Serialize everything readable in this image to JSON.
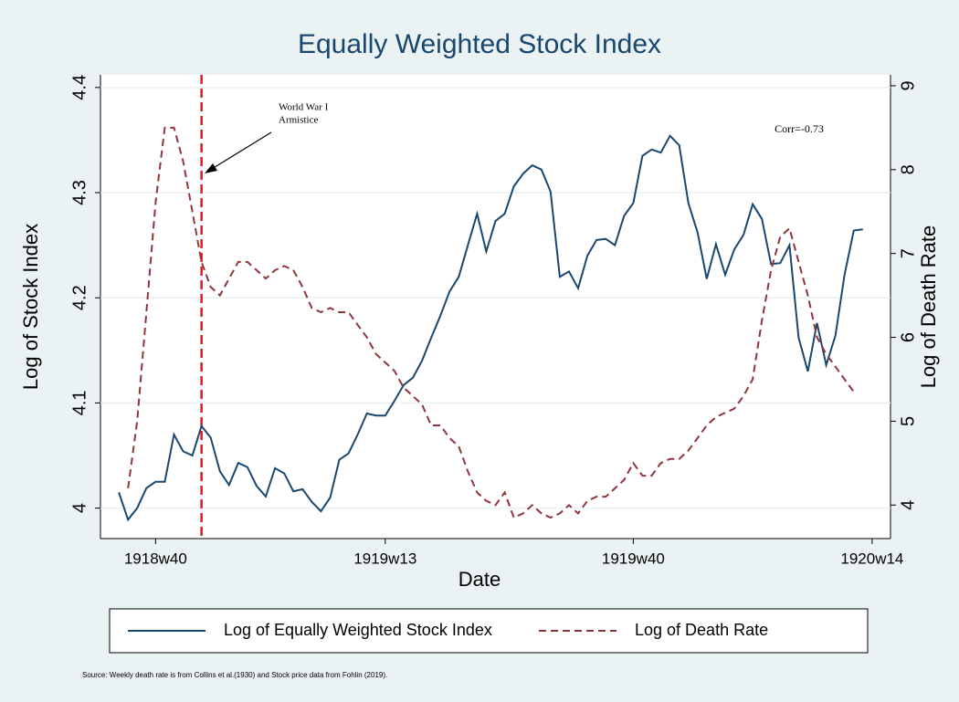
{
  "chart_data": {
    "type": "line",
    "title": "Equally Weighted Stock Index",
    "xlabel": "Date",
    "ylabel": "Log of Stock Index",
    "y2label": "Log of Death Rate",
    "source": "Source: Weekly death rate is from Collins et al.(1930) and Stock price data from Fohlin (2019).",
    "corr_label": "Corr=-0.73",
    "annotation": {
      "lines": [
        "World War I",
        "Armistice"
      ],
      "x": "1918w45",
      "color": "#e8191f"
    },
    "x": [
      "1918w36",
      "1918w37",
      "1918w38",
      "1918w39",
      "1918w40",
      "1918w41",
      "1918w42",
      "1918w43",
      "1918w44",
      "1918w45",
      "1918w46",
      "1918w47",
      "1918w48",
      "1918w49",
      "1918w50",
      "1918w51",
      "1918w52",
      "1919w1",
      "1919w2",
      "1919w3",
      "1919w4",
      "1919w5",
      "1919w6",
      "1919w7",
      "1919w8",
      "1919w9",
      "1919w10",
      "1919w11",
      "1919w12",
      "1919w13",
      "1919w14",
      "1919w15",
      "1919w16",
      "1919w17",
      "1919w18",
      "1919w19",
      "1919w20",
      "1919w21",
      "1919w22",
      "1919w23",
      "1919w24",
      "1919w25",
      "1919w26",
      "1919w27",
      "1919w28",
      "1919w29",
      "1919w30",
      "1919w31",
      "1919w32",
      "1919w33",
      "1919w34",
      "1919w35",
      "1919w36",
      "1919w37",
      "1919w38",
      "1919w39",
      "1919w40",
      "1919w41",
      "1919w42",
      "1919w43",
      "1919w44",
      "1919w45",
      "1919w46",
      "1919w47",
      "1919w48",
      "1919w49",
      "1919w50",
      "1919w51",
      "1919w52",
      "1920w1",
      "1920w2",
      "1920w3",
      "1920w4",
      "1920w5",
      "1920w6",
      "1920w7",
      "1920w8",
      "1920w9",
      "1920w10",
      "1920w11",
      "1920w12",
      "1920w13"
    ],
    "series": [
      {
        "name": "Log of Equally Weighted Stock Index",
        "color": "#1a476f",
        "axis": "y",
        "values": [
          4.015,
          3.989,
          4.0,
          4.019,
          4.025,
          4.025,
          4.07,
          4.054,
          4.05,
          4.078,
          4.067,
          4.035,
          4.022,
          4.043,
          4.039,
          4.021,
          4.011,
          4.038,
          4.033,
          4.016,
          4.018,
          4.006,
          3.997,
          4.01,
          4.046,
          4.052,
          4.07,
          4.09,
          4.088,
          4.088,
          4.102,
          4.117,
          4.124,
          4.14,
          4.162,
          4.183,
          4.206,
          4.22,
          4.25,
          4.28,
          4.244,
          4.273,
          4.28,
          4.306,
          4.318,
          4.326,
          4.322,
          4.301,
          4.22,
          4.225,
          4.209,
          4.24,
          4.255,
          4.256,
          4.25,
          4.278,
          4.29,
          4.335,
          4.341,
          4.338,
          4.354,
          4.345,
          4.29,
          4.262,
          4.218,
          4.251,
          4.222,
          4.246,
          4.26,
          4.289,
          4.275,
          4.232,
          4.233,
          4.25,
          4.162,
          4.13,
          4.176,
          4.136,
          4.164,
          4.222,
          4.264,
          4.265
        ]
      },
      {
        "name": "Log of Death Rate",
        "color": "#90353b",
        "axis": "y2",
        "dashed": true,
        "values": [
          null,
          4.2,
          5.0,
          6.3,
          7.6,
          8.5,
          8.5,
          8.1,
          7.5,
          6.9,
          6.6,
          6.5,
          6.7,
          6.9,
          6.9,
          6.8,
          6.7,
          6.8,
          6.85,
          6.8,
          6.6,
          6.35,
          6.3,
          6.35,
          6.3,
          6.3,
          6.15,
          6.0,
          5.8,
          5.7,
          5.6,
          5.4,
          5.3,
          5.2,
          4.95,
          4.95,
          4.8,
          4.7,
          4.4,
          4.15,
          4.05,
          4.0,
          4.15,
          3.85,
          3.9,
          4.0,
          3.9,
          3.85,
          3.9,
          4.0,
          3.9,
          4.05,
          4.1,
          4.1,
          4.2,
          4.3,
          4.5,
          4.35,
          4.35,
          4.5,
          4.55,
          4.55,
          4.65,
          4.8,
          4.95,
          5.05,
          5.1,
          5.15,
          5.3,
          5.5,
          6.2,
          6.8,
          7.2,
          7.3,
          6.9,
          6.5,
          6.0,
          5.8,
          5.65,
          5.5,
          5.35,
          null
        ]
      }
    ],
    "xlim": [
      "1918w34",
      "1920w16"
    ],
    "xticks": [
      "1918w40",
      "1919w13",
      "1919w40",
      "1920w14"
    ],
    "ylim": [
      3.971,
      4.412
    ],
    "yticks": [
      4,
      4.1,
      4.2,
      4.3,
      4.4
    ],
    "y2lim": [
      3.6,
      9.13
    ],
    "y2ticks": [
      4,
      5,
      6,
      7,
      8,
      9
    ],
    "grid": true
  }
}
